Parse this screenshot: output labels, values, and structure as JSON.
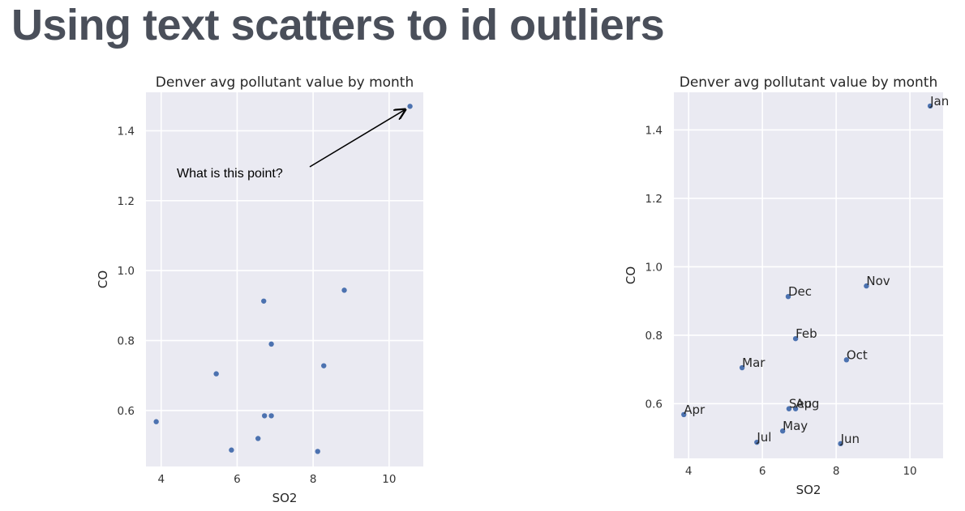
{
  "slide": {
    "title": "Using text scatters to id outliers"
  },
  "colors": {
    "point": "#4c72b0",
    "plot_bg": "#eaeaf2",
    "grid": "#ffffff"
  },
  "chart_data": [
    {
      "type": "scatter",
      "title": "Denver avg pollutant value by month",
      "xlabel": "SO2",
      "ylabel": "CO",
      "xlim": [
        3.6,
        10.9
      ],
      "ylim": [
        0.44,
        1.51
      ],
      "xticks": [
        4,
        6,
        8,
        10
      ],
      "yticks": [
        0.6,
        0.8,
        1.0,
        1.2,
        1.4
      ],
      "xtick_labels": [
        "4",
        "6",
        "8",
        "10"
      ],
      "ytick_labels": [
        "0.6",
        "0.8",
        "1.0",
        "1.2",
        "1.4"
      ],
      "grid": true,
      "points": [
        {
          "x": 10.55,
          "y": 1.47
        },
        {
          "x": 6.9,
          "y": 0.79
        },
        {
          "x": 5.45,
          "y": 0.705
        },
        {
          "x": 3.87,
          "y": 0.568
        },
        {
          "x": 6.55,
          "y": 0.52
        },
        {
          "x": 8.12,
          "y": 0.483
        },
        {
          "x": 5.85,
          "y": 0.487
        },
        {
          "x": 6.9,
          "y": 0.585
        },
        {
          "x": 6.72,
          "y": 0.585
        },
        {
          "x": 8.28,
          "y": 0.728
        },
        {
          "x": 8.82,
          "y": 0.944
        },
        {
          "x": 6.7,
          "y": 0.913
        }
      ],
      "annotation": {
        "text": "What is this point?",
        "target_index": 0
      }
    },
    {
      "type": "scatter",
      "title": "Denver avg pollutant value by month",
      "xlabel": "SO2",
      "ylabel": "CO",
      "xlim": [
        3.6,
        10.9
      ],
      "ylim": [
        0.44,
        1.51
      ],
      "xticks": [
        4,
        6,
        8,
        10
      ],
      "yticks": [
        0.6,
        0.8,
        1.0,
        1.2,
        1.4
      ],
      "xtick_labels": [
        "4",
        "6",
        "8",
        "10"
      ],
      "ytick_labels": [
        "0.6",
        "0.8",
        "1.0",
        "1.2",
        "1.4"
      ],
      "grid": true,
      "points": [
        {
          "x": 10.55,
          "y": 1.47,
          "label": "Jan"
        },
        {
          "x": 6.9,
          "y": 0.79,
          "label": "Feb"
        },
        {
          "x": 5.45,
          "y": 0.705,
          "label": "Mar"
        },
        {
          "x": 3.87,
          "y": 0.568,
          "label": "Apr"
        },
        {
          "x": 6.55,
          "y": 0.52,
          "label": "May"
        },
        {
          "x": 8.12,
          "y": 0.483,
          "label": "Jun"
        },
        {
          "x": 5.85,
          "y": 0.487,
          "label": "Jul"
        },
        {
          "x": 6.9,
          "y": 0.585,
          "label": "Aug"
        },
        {
          "x": 6.72,
          "y": 0.585,
          "label": "Sep"
        },
        {
          "x": 8.28,
          "y": 0.728,
          "label": "Oct"
        },
        {
          "x": 8.82,
          "y": 0.944,
          "label": "Nov"
        },
        {
          "x": 6.7,
          "y": 0.913,
          "label": "Dec"
        }
      ]
    }
  ]
}
